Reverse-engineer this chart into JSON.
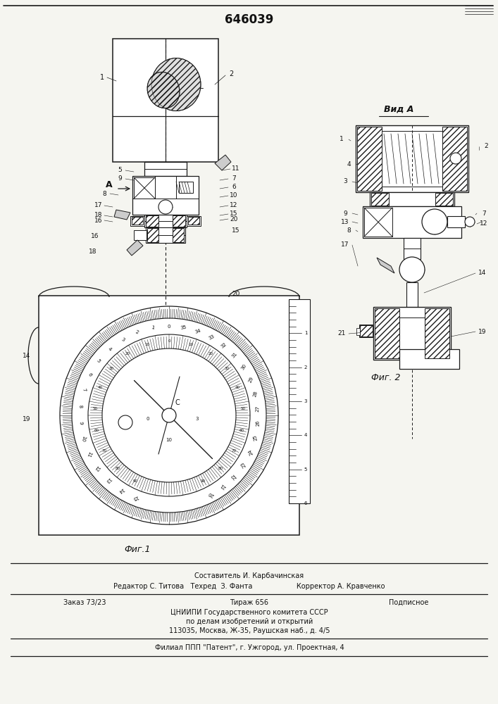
{
  "patent_number": "646039",
  "background_color": "#ffffff",
  "page_bg": "#f5f5f0",
  "fig1_caption": "Фиг.1",
  "fig2_caption": "Фиг. 2",
  "view_label": "Вид А",
  "line_color": "#1a1a1a",
  "text_color": "#111111",
  "footer_line1": "Составитель И. Карбачинская",
  "footer_line2": "Редактор С. Титова   Техред  З. Фанта                    Корректор А. Кравченко",
  "footer_order": "Заказ 73/23",
  "footer_tirazh": "Тираж 656",
  "footer_podp": "Подписное",
  "footer_org": "ЦНИИПИ Государственного комитета СССР",
  "footer_dept": "по делам изобретений и открытий",
  "footer_addr": "113035, Москва, Ж-35, Раушская наб., д. 4/5",
  "footer_filial": "Филиал ППП \"Патент\", г. Ужгород, ул. Проектная, 4"
}
